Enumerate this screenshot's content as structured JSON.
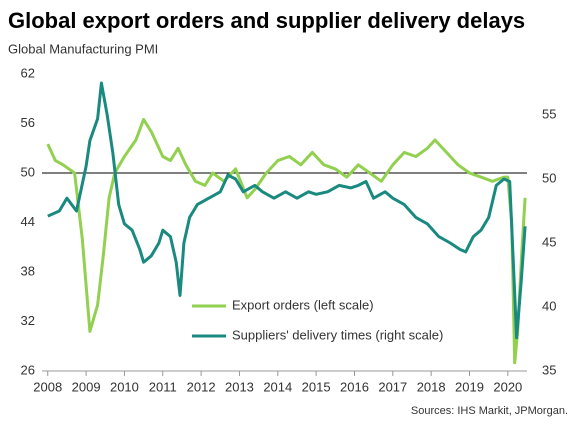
{
  "chart_data": {
    "type": "line",
    "title": "Global export orders and supplier delivery delays",
    "subtitle": "Global Manufacturing  PMI",
    "source": "Sources: IHS Markit, JPMorgan.",
    "xlim": [
      2007.85,
      2020.5
    ],
    "xticks": [
      2008,
      2009,
      2010,
      2011,
      2012,
      2013,
      2014,
      2015,
      2016,
      2017,
      2018,
      2019,
      2020
    ],
    "ylim": [
      26,
      62
    ],
    "yticks": [
      26,
      32,
      38,
      44,
      50,
      56,
      62
    ],
    "y2lim": [
      35,
      58.2
    ],
    "y2ticks": [
      35,
      40,
      45,
      50,
      55
    ],
    "reference_line": 50,
    "series": [
      {
        "name": "Export orders (left scale)",
        "color": "#92d050",
        "axis": "y",
        "x": [
          2008.0,
          2008.2,
          2008.4,
          2008.7,
          2008.9,
          2009.1,
          2009.3,
          2009.45,
          2009.6,
          2009.75,
          2010.0,
          2010.3,
          2010.5,
          2010.7,
          2011.0,
          2011.2,
          2011.4,
          2011.6,
          2011.85,
          2012.1,
          2012.3,
          2012.6,
          2012.9,
          2013.2,
          2013.4,
          2013.7,
          2014.0,
          2014.3,
          2014.6,
          2014.9,
          2015.2,
          2015.5,
          2015.8,
          2016.1,
          2016.4,
          2016.7,
          2017.0,
          2017.3,
          2017.6,
          2017.9,
          2018.1,
          2018.4,
          2018.7,
          2019.0,
          2019.3,
          2019.6,
          2019.9,
          2020.0,
          2020.1,
          2020.18,
          2020.26,
          2020.36,
          2020.45
        ],
        "values": [
          53.5,
          51.5,
          51,
          50,
          42,
          30.8,
          34,
          40,
          47,
          50,
          52,
          54,
          56.5,
          55,
          52,
          51.5,
          53,
          51,
          49,
          48.5,
          50,
          49,
          50.5,
          47,
          48,
          50,
          51.5,
          52,
          51,
          52.5,
          51,
          50.5,
          49.5,
          51,
          50,
          49,
          51,
          52.5,
          52,
          53,
          54,
          52.5,
          51,
          50,
          49.5,
          49,
          49.5,
          49.5,
          44,
          27,
          31,
          40,
          47
        ]
      },
      {
        "name": "Suppliers' delivery times (right scale)",
        "color": "#1a8a80",
        "axis": "y2",
        "x": [
          2008.0,
          2008.3,
          2008.5,
          2008.75,
          2009.0,
          2009.1,
          2009.3,
          2009.4,
          2009.55,
          2009.7,
          2009.85,
          2010.0,
          2010.2,
          2010.4,
          2010.5,
          2010.7,
          2010.9,
          2011.0,
          2011.2,
          2011.35,
          2011.45,
          2011.55,
          2011.7,
          2011.9,
          2012.2,
          2012.5,
          2012.7,
          2012.9,
          2013.1,
          2013.4,
          2013.6,
          2013.9,
          2014.2,
          2014.5,
          2014.8,
          2015.0,
          2015.3,
          2015.6,
          2015.9,
          2016.1,
          2016.3,
          2016.5,
          2016.8,
          2017.0,
          2017.3,
          2017.6,
          2017.9,
          2018.2,
          2018.5,
          2018.75,
          2018.9,
          2019.1,
          2019.3,
          2019.5,
          2019.7,
          2019.9,
          2020.05,
          2020.15,
          2020.23,
          2020.35,
          2020.45
        ],
        "values": [
          47.1,
          47.5,
          48.5,
          47.5,
          51,
          53,
          54.7,
          57.5,
          55,
          52,
          48,
          46.5,
          46,
          44.5,
          43.5,
          44,
          45,
          46,
          45.5,
          43.5,
          40.9,
          45,
          47,
          48,
          48.5,
          49,
          50.3,
          50,
          49,
          49.5,
          49,
          48.5,
          49,
          48.5,
          49,
          48.8,
          49,
          49.5,
          49.3,
          49.5,
          49.8,
          48.5,
          49,
          48.5,
          48,
          47,
          46.5,
          45.5,
          45,
          44.5,
          44.3,
          45.5,
          46,
          47,
          49.5,
          50,
          49.8,
          43,
          37.6,
          42,
          46.3
        ]
      }
    ]
  }
}
